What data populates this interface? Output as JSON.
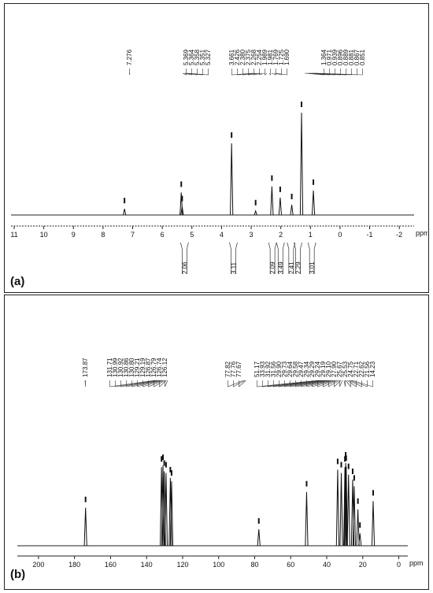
{
  "figure": {
    "panel_a_label": "(a)",
    "panel_b_label": "(b)",
    "axis_unit": "ppm"
  },
  "chart_data": [
    {
      "type": "line",
      "panel": "(a)",
      "xlabel": "ppm",
      "xlim": [
        11,
        -2.5
      ],
      "x_ticks": [
        11,
        10,
        9,
        8,
        7,
        6,
        5,
        4,
        3,
        2,
        1,
        0,
        -1,
        -2
      ],
      "peak_labels": [
        "7.276",
        "5.369",
        "5.364",
        "5.358",
        "5.351",
        "5.327",
        "3.661",
        "2.426",
        "2.380",
        "2.375",
        "2.268",
        "2.254",
        "1.989",
        "1.981",
        "1.769",
        "1.725",
        "1.690",
        "1.364",
        "0.971",
        "0.939",
        "0.896",
        "0.889",
        "0.881",
        "0.867",
        "0.851"
      ],
      "peaks": [
        {
          "ppm": 7.276,
          "height": 0.06
        },
        {
          "ppm": 5.36,
          "height": 0.22
        },
        {
          "ppm": 5.33,
          "height": 0.08
        },
        {
          "ppm": 3.661,
          "height": 0.7
        },
        {
          "ppm": 2.85,
          "height": 0.04
        },
        {
          "ppm": 2.3,
          "height": 0.28
        },
        {
          "ppm": 2.02,
          "height": 0.17
        },
        {
          "ppm": 1.63,
          "height": 0.1
        },
        {
          "ppm": 1.3,
          "height": 1.0
        },
        {
          "ppm": 0.9,
          "height": 0.24
        }
      ],
      "integrals": [
        {
          "ppm": 5.25,
          "value": "2.06"
        },
        {
          "ppm": 3.6,
          "value": "3.11"
        },
        {
          "ppm": 2.28,
          "value": "2.09"
        },
        {
          "ppm": 2.01,
          "value": "3.49"
        },
        {
          "ppm": 1.65,
          "value": "2.41"
        },
        {
          "ppm": 1.42,
          "value": "2.29"
        },
        {
          "ppm": 0.95,
          "value": "3.01"
        }
      ]
    },
    {
      "type": "line",
      "panel": "(b)",
      "xlabel": "ppm",
      "xlim": [
        210,
        -5
      ],
      "x_ticks": [
        200,
        180,
        160,
        140,
        120,
        100,
        80,
        60,
        40,
        20,
        0
      ],
      "peak_labels": [
        "173.87",
        "131.71",
        "130.99",
        "130.92",
        "130.86",
        "130.80",
        "129.21",
        "129.19",
        "126.87",
        "126.79",
        "126.74",
        "126.12",
        "77.82",
        "77.76",
        "77.67",
        "51.17",
        "33.93",
        "31.92",
        "31.56",
        "29.90",
        "29.73",
        "29.64",
        "29.58",
        "29.47",
        "29.34",
        "29.29",
        "29.24",
        "29.19",
        "29.10",
        "27.90",
        "25.67",
        "25.53",
        "24.75",
        "22.71",
        "22.62",
        "21.56",
        "14.23"
      ],
      "peaks": [
        {
          "ppm": 173.87,
          "height": 0.46
        },
        {
          "ppm": 131.71,
          "height": 0.95
        },
        {
          "ppm": 130.9,
          "height": 0.97
        },
        {
          "ppm": 130.2,
          "height": 0.9
        },
        {
          "ppm": 129.2,
          "height": 0.88
        },
        {
          "ppm": 126.8,
          "height": 0.82
        },
        {
          "ppm": 126.12,
          "height": 0.78
        },
        {
          "ppm": 77.7,
          "height": 0.2
        },
        {
          "ppm": 51.17,
          "height": 0.65
        },
        {
          "ppm": 33.93,
          "height": 0.92
        },
        {
          "ppm": 31.92,
          "height": 0.88
        },
        {
          "ppm": 29.9,
          "height": 0.95
        },
        {
          "ppm": 29.5,
          "height": 1.0
        },
        {
          "ppm": 29.2,
          "height": 0.96
        },
        {
          "ppm": 27.9,
          "height": 0.86
        },
        {
          "ppm": 25.6,
          "height": 0.8
        },
        {
          "ppm": 24.75,
          "height": 0.72
        },
        {
          "ppm": 22.7,
          "height": 0.44
        },
        {
          "ppm": 21.56,
          "height": 0.15
        },
        {
          "ppm": 14.23,
          "height": 0.54
        }
      ]
    }
  ]
}
